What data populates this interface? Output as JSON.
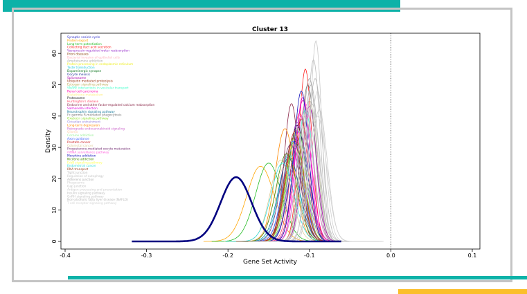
{
  "decor": {
    "teal": "#0db2a8",
    "gray": "#c4c4c4",
    "yellow": "#fbbf2a"
  },
  "chart_data": {
    "type": "line",
    "title": "Cluster 13",
    "xlabel": "Gene Set Activity",
    "ylabel": "Density",
    "xlim": [
      -0.4,
      0.1
    ],
    "ylim": [
      0,
      65
    ],
    "xticks": [
      "-0.4",
      "-0.3",
      "-0.2",
      "-0.1",
      "0.0",
      "0.1"
    ],
    "xtick_values": [
      -0.4,
      -0.3,
      -0.2,
      -0.1,
      0.0,
      0.1
    ],
    "yticks": [
      "0",
      "10",
      "20",
      "30",
      "40",
      "50",
      "60"
    ],
    "ytick_values": [
      0,
      10,
      20,
      30,
      40,
      50,
      60
    ],
    "vline": 0,
    "legend_position": "top-left",
    "series": [
      {
        "name": "Synaptic vesicle cycle",
        "color": "#3333cc",
        "mean": -0.112,
        "sd": 0.012,
        "peak": 33
      },
      {
        "name": "Protein export",
        "color": "#ffa500",
        "mean": -0.16,
        "sd": 0.017,
        "peak": 24
      },
      {
        "name": "Long-term potentiation",
        "color": "#22bb22",
        "mean": -0.15,
        "sd": 0.016,
        "peak": 25
      },
      {
        "name": "Collecting duct acid secretion",
        "color": "#ff2222",
        "mean": -0.105,
        "sd": 0.008,
        "peak": 55
      },
      {
        "name": "Vasopressin-regulated water reabsorption",
        "color": "#9933cc",
        "mean": -0.115,
        "sd": 0.01,
        "peak": 38
      },
      {
        "name": "Prion diseases",
        "color": "#8b4513",
        "mean": -0.12,
        "sd": 0.011,
        "peak": 30
      },
      {
        "name": "Bacterial invasion of epithelial cells",
        "color": "#ffb6c1",
        "mean": -0.108,
        "sd": 0.009,
        "peak": 47
      },
      {
        "name": "Amphetamine addiction",
        "color": "#aaaaaa",
        "mean": -0.1,
        "sd": 0.009,
        "peak": 52
      },
      {
        "name": "Protein processing in endoplasmic reticulum",
        "color": "#eeee22",
        "mean": -0.11,
        "sd": 0.01,
        "peak": 40
      },
      {
        "name": "Taste transduction",
        "color": "#22ccdd",
        "mean": -0.125,
        "sd": 0.012,
        "peak": 28
      },
      {
        "name": "Dopaminergic synapse",
        "color": "#117722",
        "mean": -0.118,
        "sd": 0.011,
        "peak": 32
      },
      {
        "name": "Oocyte meiosis",
        "color": "#223399",
        "mean": -0.113,
        "sd": 0.011,
        "peak": 35
      },
      {
        "name": "Spliceosome",
        "color": "#aa00aa",
        "mean": -0.1,
        "sd": 0.009,
        "peak": 43
      },
      {
        "name": "Ubiquitin mediated proteolysis",
        "color": "#993311",
        "mean": -0.11,
        "sd": 0.01,
        "peak": 39
      },
      {
        "name": "Estrogen signaling pathway",
        "color": "#bbaa55",
        "mean": -0.118,
        "sd": 0.011,
        "peak": 33
      },
      {
        "name": "SNARE interactions in vesicular transport",
        "color": "#44ffcc",
        "mean": -0.105,
        "sd": 0.01,
        "peak": 42
      },
      {
        "name": "Renal cell carcinoma",
        "color": "#ff00aa",
        "mean": -0.108,
        "sd": 0.01,
        "peak": 45
      },
      {
        "name": "Glutathione metabolism",
        "color": "#ffee88",
        "mean": -0.12,
        "sd": 0.012,
        "peak": 31
      },
      {
        "name": "Proteasome",
        "color": "#222222",
        "mean": -0.115,
        "sd": 0.011,
        "peak": 37
      },
      {
        "name": "Huntington's disease",
        "color": "#ff4466",
        "mean": -0.112,
        "sd": 0.01,
        "peak": 41
      },
      {
        "name": "Endocrine and other factor-regulated calcium reabsorption",
        "color": "#882244",
        "mean": -0.122,
        "sd": 0.009,
        "peak": 44
      },
      {
        "name": "Salmonella infection",
        "color": "#dd00dd",
        "mean": -0.108,
        "sd": 0.009,
        "peak": 46
      },
      {
        "name": "Neurotrophin signaling pathway",
        "color": "#117799",
        "mean": -0.125,
        "sd": 0.013,
        "peak": 27
      },
      {
        "name": "Fc gamma R-mediated phagocytosis",
        "color": "#777777",
        "mean": -0.102,
        "sd": 0.009,
        "peak": 50
      },
      {
        "name": "Oxytocin signaling pathway",
        "color": "#88dd22",
        "mean": -0.117,
        "sd": 0.011,
        "peak": 34
      },
      {
        "name": "Circadian entrainment",
        "color": "#9988dd",
        "mean": -0.12,
        "sd": 0.012,
        "peak": 30
      },
      {
        "name": "Long-term depression",
        "color": "#ff8800",
        "mean": -0.13,
        "sd": 0.012,
        "peak": 36
      },
      {
        "name": "Retrograde endocannabinoid signaling",
        "color": "#cc66cc",
        "mean": -0.11,
        "sd": 0.01,
        "peak": 40
      },
      {
        "name": "Glioma",
        "color": "#ffccaa",
        "mean": -0.128,
        "sd": 0.014,
        "peak": 25
      },
      {
        "name": "Cocaine addiction",
        "color": "#99ee99",
        "mean": -0.115,
        "sd": 0.011,
        "peak": 36
      },
      {
        "name": "Axon guidance",
        "color": "#4466ff",
        "mean": -0.12,
        "sd": 0.012,
        "peak": 32
      },
      {
        "name": "Prostate cancer",
        "color": "#cc2222",
        "mean": -0.118,
        "sd": 0.011,
        "peak": 35
      },
      {
        "name": "Colorectal cancer",
        "color": "#ddcc99",
        "mean": -0.135,
        "sd": 0.013,
        "peak": 26
      },
      {
        "name": "Progesterone-mediated oocyte maturation",
        "color": "#773377",
        "mean": -0.123,
        "sd": 0.012,
        "peak": 31
      },
      {
        "name": "mRNA surveillance pathway",
        "color": "#ff66dd",
        "mean": -0.105,
        "sd": 0.01,
        "peak": 44
      },
      {
        "name": "Morphine addiction",
        "color": "#1111bb",
        "mean": -0.11,
        "sd": 0.009,
        "peak": 48
      },
      {
        "name": "Nicotine addiction",
        "color": "#448800",
        "mean": -0.128,
        "sd": 0.013,
        "peak": 28
      },
      {
        "name": "ErbB signaling pathway",
        "color": "#ffff55",
        "mean": -0.1,
        "sd": 0.01,
        "peak": 45
      },
      {
        "name": "Endometrial cancer",
        "color": "#33dddd",
        "mean": -0.133,
        "sd": 0.014,
        "peak": 25
      },
      {
        "name": "RNA transport",
        "color": "#994422",
        "mean": -0.12,
        "sd": 0.011,
        "peak": 33
      },
      {
        "name": "Tight junction",
        "color": "#bbbbbb",
        "mean": -0.095,
        "sd": 0.008,
        "peak": 58
      },
      {
        "name": "Regulation of autophagy",
        "color": "#c8c8c8",
        "mean": -0.092,
        "sd": 0.007,
        "peak": 64
      },
      {
        "name": "Adherens junction",
        "color": "#b0b0b0",
        "mean": -0.098,
        "sd": 0.009,
        "peak": 50
      },
      {
        "name": "Phagosome",
        "color": "#d0d0d0",
        "mean": -0.09,
        "sd": 0.009,
        "peak": 48
      },
      {
        "name": "Gap junction",
        "color": "#c0c0c0",
        "mean": -0.1,
        "sd": 0.01,
        "peak": 45
      },
      {
        "name": "Antigen processing and presentation",
        "color": "#cccccc",
        "mean": -0.088,
        "sd": 0.01,
        "peak": 42
      },
      {
        "name": "Insulin signaling pathway",
        "color": "#bdbdbd",
        "mean": -0.105,
        "sd": 0.01,
        "peak": 40
      },
      {
        "name": "GnRH signaling pathway",
        "color": "#c4c4c4",
        "mean": -0.097,
        "sd": 0.01,
        "peak": 44
      },
      {
        "name": "Non-alcoholic fatty liver disease (NAFLD)",
        "color": "#b8b8b8",
        "mean": -0.093,
        "sd": 0.009,
        "peak": 52
      },
      {
        "name": "T cell receptor signaling pathway",
        "color": "#d4d4d4",
        "mean": -0.09,
        "sd": 0.011,
        "peak": 40
      },
      {
        "name": "_highlight",
        "color": "#000080",
        "mean": -0.19,
        "sd": 0.019,
        "peak": 20.5,
        "bold": true
      }
    ]
  }
}
